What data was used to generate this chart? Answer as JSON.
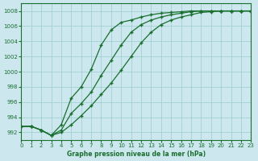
{
  "xlabel": "Graphe pression niveau de la mer (hPa)",
  "xlim": [
    0,
    23
  ],
  "ylim": [
    991,
    1009
  ],
  "yticks": [
    992,
    994,
    996,
    998,
    1000,
    1002,
    1004,
    1006,
    1008
  ],
  "xticks": [
    0,
    1,
    2,
    3,
    4,
    5,
    6,
    7,
    8,
    9,
    10,
    11,
    12,
    13,
    14,
    15,
    16,
    17,
    18,
    19,
    20,
    21,
    22,
    23
  ],
  "background_color": "#cce8ee",
  "grid_color": "#99cccc",
  "line_color": "#1a6e2e",
  "series1_x": [
    0,
    1,
    2,
    3,
    4,
    5,
    6,
    7,
    8,
    9,
    10,
    11,
    12,
    13,
    14,
    15,
    16,
    17,
    18,
    19,
    20,
    21,
    22,
    23
  ],
  "series1_y": [
    992.8,
    992.8,
    992.3,
    991.6,
    993.0,
    996.5,
    998.0,
    1000.3,
    1003.5,
    1005.5,
    1006.5,
    1006.8,
    1007.2,
    1007.5,
    1007.7,
    1007.8,
    1007.9,
    1008.0,
    1008.0,
    1008.0,
    1008.0,
    1008.0,
    1008.0,
    1008.0
  ],
  "series2_x": [
    0,
    1,
    2,
    3,
    4,
    5,
    6,
    7,
    8,
    9,
    10,
    11,
    12,
    13,
    14,
    15,
    16,
    17,
    18,
    19,
    20,
    21,
    22,
    23
  ],
  "series2_y": [
    992.8,
    992.8,
    992.3,
    991.6,
    992.3,
    994.5,
    995.8,
    997.3,
    999.5,
    1001.5,
    1003.5,
    1005.2,
    1006.2,
    1006.8,
    1007.2,
    1007.5,
    1007.7,
    1007.9,
    1008.0,
    1008.0,
    1008.0,
    1008.0,
    1008.0,
    1008.0
  ],
  "series3_x": [
    0,
    1,
    2,
    3,
    4,
    5,
    6,
    7,
    8,
    9,
    10,
    11,
    12,
    13,
    14,
    15,
    16,
    17,
    18,
    19,
    20,
    21,
    22,
    23
  ],
  "series3_y": [
    992.8,
    992.8,
    992.3,
    991.6,
    992.0,
    993.0,
    994.2,
    995.5,
    997.0,
    998.5,
    1000.2,
    1002.0,
    1003.8,
    1005.2,
    1006.2,
    1006.8,
    1007.2,
    1007.5,
    1007.8,
    1007.9,
    1008.0,
    1008.0,
    1008.0,
    1008.0
  ]
}
